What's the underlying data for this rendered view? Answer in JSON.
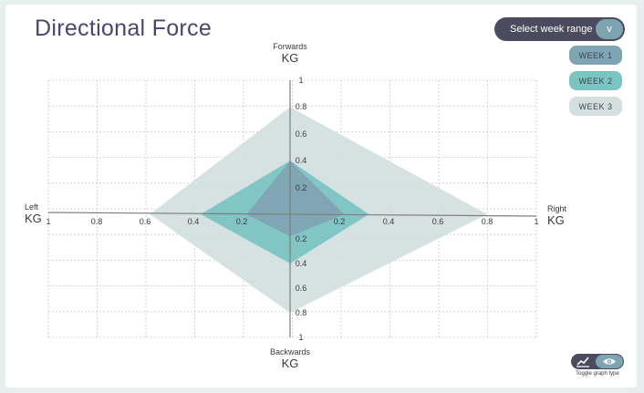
{
  "header": {
    "title": "Directional Force"
  },
  "controls": {
    "select_label": "Select week range",
    "select_chevron": "v",
    "weeks": [
      "WEEK 1",
      "WEEK 2",
      "WEEK 3"
    ],
    "toggle_label": "Toggle graph type"
  },
  "axes": {
    "forwards": {
      "name": "Forwards",
      "unit": "KG"
    },
    "backwards": {
      "name": "Backwards",
      "unit": "KG"
    },
    "left": {
      "name": "Left",
      "unit": "KG"
    },
    "right": {
      "name": "Right",
      "unit": "KG"
    }
  },
  "chart_data": {
    "type": "radar",
    "directions": [
      "Forwards",
      "Right",
      "Backwards",
      "Left"
    ],
    "ticks": {
      "vertical": [
        "1",
        "0.8",
        "0.6",
        "0.4",
        "0.2"
      ],
      "horizontal": [
        "1",
        "0.8",
        "0.6",
        "0.4",
        "0.2"
      ]
    },
    "range": [
      0,
      1
    ],
    "series": [
      {
        "name": "WEEK 3",
        "color": "#d4dfdf",
        "values": {
          "forwards": 0.8,
          "right": 0.8,
          "backwards": 0.8,
          "left": 0.58
        }
      },
      {
        "name": "WEEK 2",
        "color": "#7cc4c2",
        "values": {
          "forwards": 0.4,
          "right": 0.32,
          "backwards": 0.4,
          "left": 0.37
        }
      },
      {
        "name": "WEEK 1",
        "color": "#7fa4b3",
        "values": {
          "forwards": 0.4,
          "right": 0.22,
          "backwards": 0.18,
          "left": 0.18
        }
      }
    ],
    "grid": true
  },
  "colors": {
    "title": "#4a4670",
    "dark_button": "#4b4a5e",
    "accent": "#7ea3b1"
  }
}
